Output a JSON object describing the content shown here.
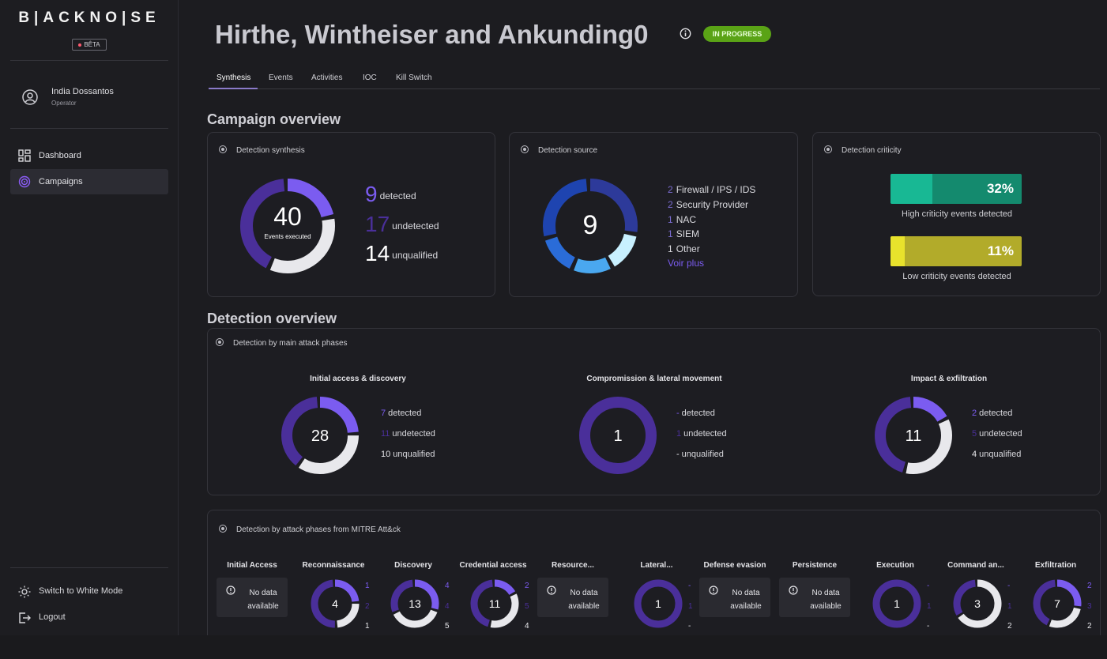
{
  "app": {
    "logo": "B|ACKNO|SE",
    "beta": "BÊTA"
  },
  "user": {
    "name": "India Dossantos",
    "role": "Operator"
  },
  "nav": [
    {
      "label": "Dashboard",
      "icon": "dashboard-icon",
      "active": false
    },
    {
      "label": "Campaigns",
      "icon": "campaign-icon",
      "active": true
    }
  ],
  "bottom_nav": {
    "theme": "Switch to White Mode",
    "logout": "Logout"
  },
  "header": {
    "title": "Hirthe, Wintheiser and Ankunding0",
    "status": "IN PROGRESS"
  },
  "tabs": [
    "Synthesis",
    "Events",
    "Activities",
    "IOC",
    "Kill Switch"
  ],
  "campaign_overview": {
    "title": "Campaign overview",
    "synthesis": {
      "title": "Detection synthesis",
      "total": "40",
      "total_label": "Events executed",
      "detected": {
        "value": "9",
        "label": "detected"
      },
      "undetected": {
        "value": "17",
        "label": "undetected"
      },
      "unqualified": {
        "value": "14",
        "label": "unqualified"
      }
    },
    "source": {
      "title": "Detection source",
      "total": "9",
      "items": [
        {
          "n": "2",
          "label": "Firewall / IPS / IDS"
        },
        {
          "n": "2",
          "label": "Security Provider"
        },
        {
          "n": "1",
          "label": "NAC"
        },
        {
          "n": "1",
          "label": "SIEM"
        },
        {
          "n": "1",
          "label": "Other"
        }
      ],
      "more": "Voir plus"
    },
    "criticity": {
      "title": "Detection criticity",
      "high": {
        "pct": "32%",
        "value": 0.32,
        "label": "High criticity events detected"
      },
      "low": {
        "pct": "11%",
        "value": 0.11,
        "label": "Low criticity events detected"
      }
    }
  },
  "detection_overview": {
    "title": "Detection overview",
    "main_phases": {
      "title": "Detection by main attack phases",
      "phases": [
        {
          "name": "Initial access & discovery",
          "total": "28",
          "detected": "7",
          "undetected": "11",
          "unqualified": "10"
        },
        {
          "name": "Compromission & lateral movement",
          "total": "1",
          "detected": "-",
          "undetected": "1",
          "unqualified": "-"
        },
        {
          "name": "Impact & exfiltration",
          "total": "11",
          "detected": "2",
          "undetected": "5",
          "unqualified": "4"
        }
      ],
      "labels": {
        "detected": "detected",
        "undetected": "undetected",
        "unqualified": "unqualified"
      }
    },
    "mitre": {
      "title": "Detection by attack phases from MITRE Att&ck",
      "no_data": "No data available",
      "phases": [
        {
          "name": "Initial Access",
          "nodata": true
        },
        {
          "name": "Reconnaissance",
          "total": "4",
          "detected": "1",
          "undetected": "2",
          "unqualified": "1"
        },
        {
          "name": "Discovery",
          "total": "13",
          "detected": "4",
          "undetected": "4",
          "unqualified": "5"
        },
        {
          "name": "Credential access",
          "total": "11",
          "detected": "2",
          "undetected": "5",
          "unqualified": "4"
        },
        {
          "name": "Resource...",
          "nodata": true
        },
        {
          "name": "Lateral...",
          "total": "1",
          "detected": "-",
          "undetected": "1",
          "unqualified": "-"
        },
        {
          "name": "Defense evasion",
          "nodata": true
        },
        {
          "name": "Persistence",
          "nodata": true
        },
        {
          "name": "Execution",
          "total": "1",
          "detected": "-",
          "undetected": "1",
          "unqualified": "-"
        },
        {
          "name": "Command an...",
          "total": "3",
          "detected": "-",
          "undetected": "1",
          "unqualified": "2"
        },
        {
          "name": "Exfiltration",
          "total": "7",
          "detected": "2",
          "undetected": "3",
          "unqualified": "2"
        }
      ]
    }
  },
  "colors": {
    "detected": "#7b5cf0",
    "undetected": "#4a2f9a",
    "unqualified": "#e8e8ec",
    "status": "#5aa316",
    "high_criticity": "#18b38c",
    "low_criticity": "#b5b02a"
  }
}
